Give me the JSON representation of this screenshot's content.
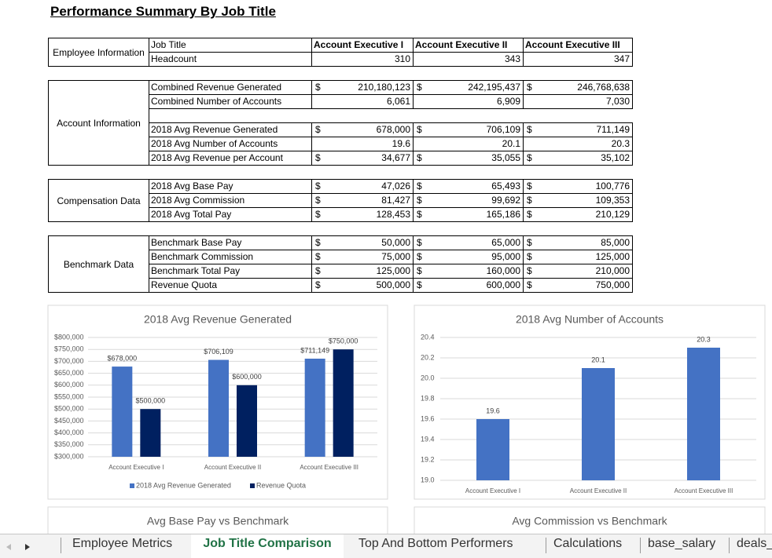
{
  "title": "Performance Summary By Job Title",
  "table": {
    "sections": [
      {
        "label": "Employee Information",
        "rows": [
          {
            "label": "Job Title",
            "cells": [
              {
                "value": "Account Executive I"
              },
              {
                "value": "Account Executive II"
              },
              {
                "value": "Account Executive III"
              }
            ]
          },
          {
            "label": "Headcount",
            "cells": [
              {
                "value": "310"
              },
              {
                "value": "343"
              },
              {
                "value": "347"
              }
            ]
          }
        ]
      },
      {
        "label": "Account Information",
        "rows": [
          {
            "label": "Combined Revenue Generated",
            "cells": [
              {
                "sign": "$",
                "value": "210,180,123"
              },
              {
                "sign": "$",
                "value": "242,195,437"
              },
              {
                "sign": "$",
                "value": "246,768,638"
              }
            ]
          },
          {
            "label": "Combined Number of Accounts",
            "cells": [
              {
                "value": "6,061"
              },
              {
                "value": "6,909"
              },
              {
                "value": "7,030"
              }
            ]
          },
          {
            "label": "2018 Avg Revenue Generated",
            "cells": [
              {
                "sign": "$",
                "value": "678,000"
              },
              {
                "sign": "$",
                "value": "706,109"
              },
              {
                "sign": "$",
                "value": "711,149"
              }
            ]
          },
          {
            "label": "2018 Avg Number of Accounts",
            "cells": [
              {
                "value": "19.6"
              },
              {
                "value": "20.1"
              },
              {
                "value": "20.3"
              }
            ]
          },
          {
            "label": "2018 Avg Revenue per Account",
            "cells": [
              {
                "sign": "$",
                "value": "34,677"
              },
              {
                "sign": "$",
                "value": "35,055"
              },
              {
                "sign": "$",
                "value": "35,102"
              }
            ]
          }
        ]
      },
      {
        "label": "Compensation Data",
        "rows": [
          {
            "label": "2018 Avg Base Pay",
            "cells": [
              {
                "sign": "$",
                "value": "47,026"
              },
              {
                "sign": "$",
                "value": "65,493"
              },
              {
                "sign": "$",
                "value": "100,776"
              }
            ]
          },
          {
            "label": "2018 Avg Commission",
            "cells": [
              {
                "sign": "$",
                "value": "81,427"
              },
              {
                "sign": "$",
                "value": "99,692"
              },
              {
                "sign": "$",
                "value": "109,353"
              }
            ]
          },
          {
            "label": "2018 Avg Total Pay",
            "cells": [
              {
                "sign": "$",
                "value": "128,453"
              },
              {
                "sign": "$",
                "value": "165,186"
              },
              {
                "sign": "$",
                "value": "210,129"
              }
            ]
          }
        ]
      },
      {
        "label": "Benchmark Data",
        "rows": [
          {
            "label": "Benchmark Base Pay",
            "cells": [
              {
                "sign": "$",
                "value": "50,000"
              },
              {
                "sign": "$",
                "value": "65,000"
              },
              {
                "sign": "$",
                "value": "85,000"
              }
            ]
          },
          {
            "label": "Benchmark Commission",
            "cells": [
              {
                "sign": "$",
                "value": "75,000"
              },
              {
                "sign": "$",
                "value": "95,000"
              },
              {
                "sign": "$",
                "value": "125,000"
              }
            ]
          },
          {
            "label": "Benchmark Total Pay",
            "cells": [
              {
                "sign": "$",
                "value": "125,000"
              },
              {
                "sign": "$",
                "value": "160,000"
              },
              {
                "sign": "$",
                "value": "210,000"
              }
            ]
          },
          {
            "label": "Revenue Quota",
            "cells": [
              {
                "sign": "$",
                "value": "500,000"
              },
              {
                "sign": "$",
                "value": "600,000"
              },
              {
                "sign": "$",
                "value": "750,000"
              }
            ]
          }
        ]
      }
    ]
  },
  "chart_data": [
    {
      "type": "bar",
      "title": "2018 Avg Revenue Generated",
      "categories": [
        "Account Executive I",
        "Account Executive II",
        "Account Executive III"
      ],
      "series": [
        {
          "name": "2018 Avg Revenue Generated",
          "color": "#4472c4",
          "values": [
            678000,
            706109,
            711149
          ],
          "value_labels": [
            "$678,000",
            "$706,109",
            "$711,149"
          ]
        },
        {
          "name": "Revenue Quota",
          "color": "#002060",
          "values": [
            500000,
            600000,
            750000
          ],
          "value_labels": [
            "$500,000",
            "$600,000",
            "$750,000"
          ]
        }
      ],
      "ylim": [
        300000,
        800000
      ],
      "yticks": [
        {
          "value": 300000,
          "label": "$300,000"
        },
        {
          "value": 350000,
          "label": "$350,000"
        },
        {
          "value": 400000,
          "label": "$400,000"
        },
        {
          "value": 450000,
          "label": "$450,000"
        },
        {
          "value": 500000,
          "label": "$500,000"
        },
        {
          "value": 550000,
          "label": "$550,000"
        },
        {
          "value": 600000,
          "label": "$600,000"
        },
        {
          "value": 650000,
          "label": "$650,000"
        },
        {
          "value": 700000,
          "label": "$700,000"
        },
        {
          "value": 750000,
          "label": "$750,000"
        },
        {
          "value": 800000,
          "label": "$800,000"
        }
      ],
      "grid": true
    },
    {
      "type": "bar",
      "title": "2018 Avg Number of Accounts",
      "categories": [
        "Account Executive I",
        "Account Executive II",
        "Account Executive III"
      ],
      "series": [
        {
          "name": "2018 Avg Number of Accounts",
          "color": "#4472c4",
          "values": [
            19.6,
            20.1,
            20.3
          ]
        }
      ],
      "ylim": [
        19.0,
        20.4
      ],
      "yticks": [
        {
          "value": 19,
          "label": "19.0"
        },
        19.2,
        19.4,
        19.6,
        19.8,
        {
          "value": 20,
          "label": "20.0"
        },
        20.2,
        20.4
      ],
      "grid": true
    }
  ],
  "more_charts": [
    "Avg Base Pay vs Benchmark",
    "Avg Commission vs Benchmark"
  ],
  "tabs": [
    "Employee Metrics",
    "Job Title Comparison",
    "Top And Bottom Performers",
    "Calculations",
    "base_salary",
    "deals_"
  ]
}
